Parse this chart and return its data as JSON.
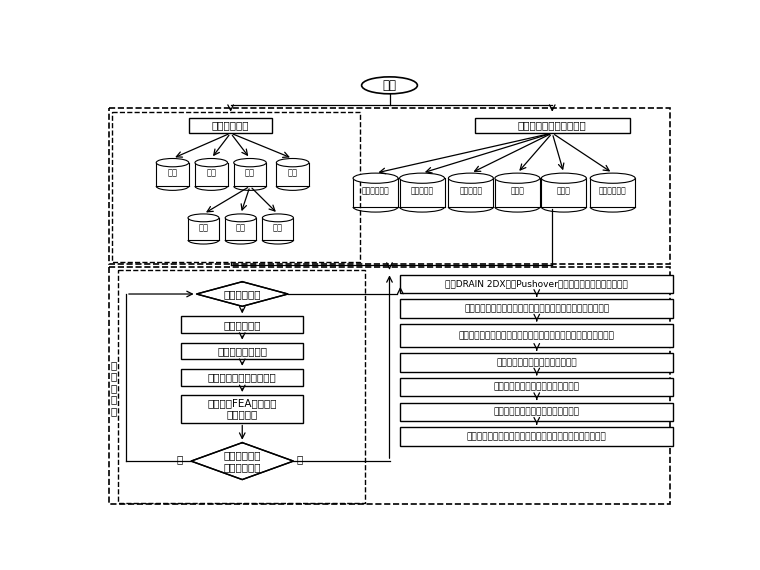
{
  "bg_color": "#ffffff",
  "start_label": "开始",
  "section1_label": "结构模型建立",
  "section2_label": "定义多目标遗传算法参数",
  "left_cylinders": [
    "层数",
    "跨数",
    "荷载",
    "材料"
  ],
  "sub_cylinders": [
    "恒载",
    "活载",
    "地震"
  ],
  "right_cylinders": [
    "目标函数数量",
    "设计变量数",
    "轮盘赌参数",
    "交叉率",
    "变异率",
    "产生初始种群"
  ],
  "diamond1_text": "针对初始种群",
  "box_left": [
    "计算初始造价",
    "统计截面类型数量",
    "定义竖向及水平荷载作用",
    "运用弹性FEA计算结构\n内力及变形"
  ],
  "diamond2_text": "检查是否满足\n规范约束要求",
  "diamond2_yes": "是",
  "diamond2_no": "否",
  "box_right": [
    "调用DRAIN 2DX进行Pushover分析确定结构最大层间位移角",
    "运用对数正态拟合小震与大震对应超越概率与最大层间位移角",
    "通过修正系数来考虑计算模型及地震荷载的随机性与不确定性影响",
    "计算对应于不同破坏状态的损失值",
    "计算对应于不同破坏状态的失效概率",
    "计算对应于不同破坏状态的损失期望",
    "给出初始造价、损失期望、截面类型数量值及相关性能指标"
  ],
  "side_label": "下\n一\n个\n个\n体"
}
